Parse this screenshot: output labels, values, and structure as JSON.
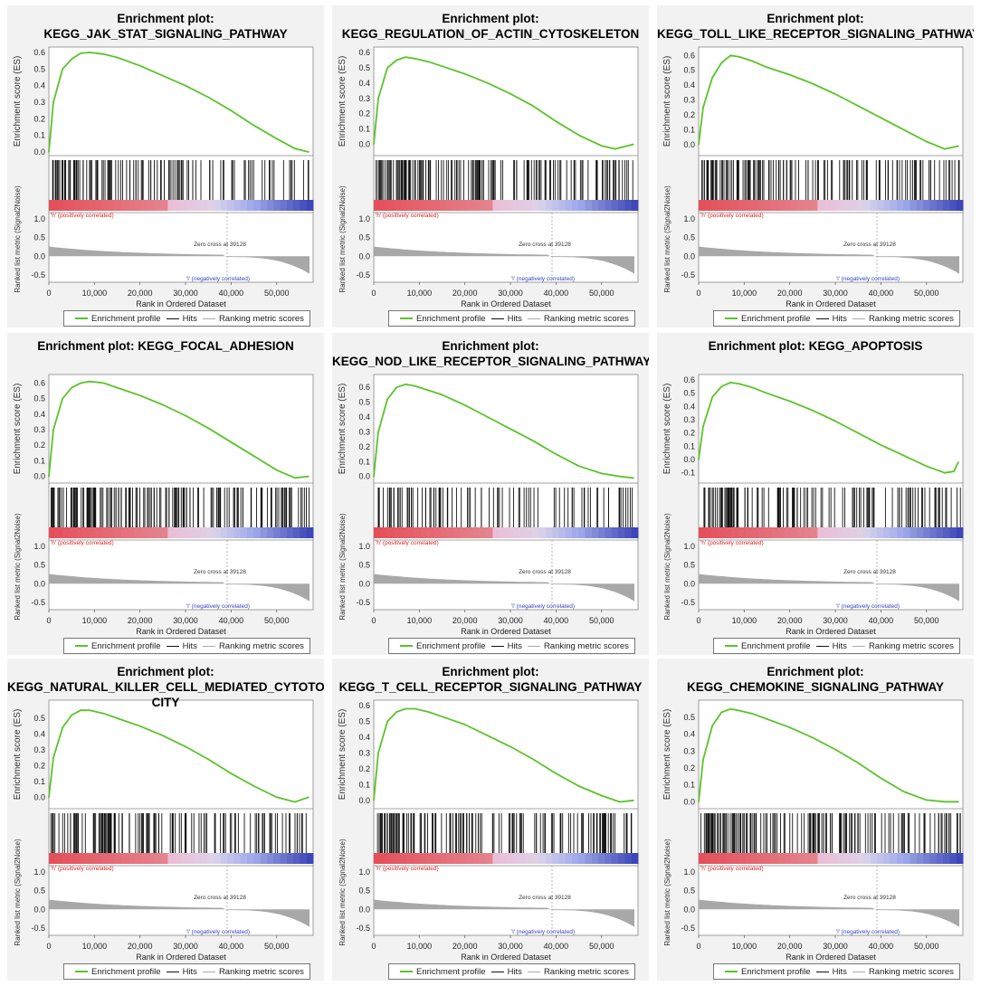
{
  "legend": {
    "profile": "Enrichment profile",
    "hits": "Hits",
    "ranking": "Ranking metric scores"
  },
  "labels": {
    "es_axis": "Enrichment score (ES)",
    "metric_axis": "Ranked list metric (Signal2Noise)",
    "x_axis": "Rank in Ordered Dataset",
    "pos": "'h' (positively correlated)",
    "neg": "'l' (negatively correlated)",
    "zero_cross": "Zero cross at 39128"
  },
  "colors": {
    "curve": "#5cc22c",
    "hit": "#111111",
    "metric": "#a8a8a8"
  },
  "chart_data": [
    {
      "type": "line",
      "title": "Enrichment plot:\nKEGG_JAK_STAT_SIGNALING_PATHWAY",
      "es_ticks": [
        "0.6",
        "0.5",
        "0.4",
        "0.3",
        "0.2",
        "0.1",
        "0.0"
      ],
      "es_ylim": [
        0,
        0.6
      ],
      "es_min": 0,
      "x": [
        0,
        1000,
        3000,
        5000,
        7000,
        9000,
        12000,
        15000,
        20000,
        25000,
        30000,
        35000,
        40000,
        45000,
        50000,
        54000,
        57000
      ],
      "es": [
        0,
        0.3,
        0.5,
        0.56,
        0.595,
        0.6,
        0.59,
        0.57,
        0.52,
        0.46,
        0.4,
        0.33,
        0.25,
        0.16,
        0.08,
        0.02,
        0
      ],
      "xlim": [
        0,
        58000
      ],
      "xticks": [
        "0",
        "10,000",
        "20,000",
        "30,000",
        "40,000",
        "50,000"
      ],
      "metric_ticks": [
        "1.0",
        "0.5",
        "0.0",
        "-0.5"
      ],
      "hit_density": [
        0.9,
        0.5,
        0.35,
        0.3
      ]
    },
    {
      "type": "line",
      "title": "Enrichment plot:\nKEGG_REGULATION_OF_ACTIN_CYTOSKELETON",
      "es_ticks": [
        "0.6",
        "0.5",
        "0.4",
        "0.3",
        "0.2",
        "0.1",
        "0.0"
      ],
      "es_ylim": [
        -0.05,
        0.6
      ],
      "es_min": -0.05,
      "x": [
        0,
        1000,
        3000,
        5000,
        7000,
        9000,
        12000,
        15000,
        20000,
        25000,
        30000,
        35000,
        40000,
        45000,
        50000,
        53000,
        57000
      ],
      "es": [
        0,
        0.3,
        0.5,
        0.55,
        0.57,
        0.56,
        0.54,
        0.51,
        0.46,
        0.4,
        0.33,
        0.25,
        0.15,
        0.06,
        -0.01,
        -0.03,
        0.0
      ],
      "xlim": [
        0,
        58000
      ],
      "xticks": [
        "0",
        "10,000",
        "20,000",
        "30,000",
        "40,000",
        "50,000"
      ],
      "metric_ticks": [
        "1.0",
        "0.5",
        "0.0",
        "-0.5"
      ],
      "hit_density": [
        0.9,
        0.6,
        0.5,
        0.55
      ]
    },
    {
      "type": "line",
      "title": "Enrichment plot:\nKEGG_TOLL_LIKE_RECEPTOR_SIGNALING_PATHWAY",
      "es_ticks": [
        "0.6",
        "0.5",
        "0.4",
        "0.3",
        "0.2",
        "0.1",
        "0.0"
      ],
      "es_ylim": [
        -0.05,
        0.62
      ],
      "es_min": -0.05,
      "x": [
        0,
        1000,
        3000,
        5000,
        7000,
        9000,
        12000,
        15000,
        20000,
        25000,
        30000,
        35000,
        40000,
        45000,
        50000,
        54000,
        57000
      ],
      "es": [
        0,
        0.25,
        0.45,
        0.55,
        0.6,
        0.59,
        0.56,
        0.52,
        0.47,
        0.41,
        0.34,
        0.26,
        0.18,
        0.1,
        0.02,
        -0.03,
        -0.01
      ],
      "xlim": [
        0,
        58000
      ],
      "xticks": [
        "0",
        "10,000",
        "20,000",
        "30,000",
        "40,000",
        "50,000"
      ],
      "metric_ticks": [
        "1.0",
        "0.5",
        "0.0",
        "-0.5"
      ],
      "hit_density": [
        0.85,
        0.5,
        0.45,
        0.45
      ]
    },
    {
      "type": "line",
      "title": "Enrichment plot: KEGG_FOCAL_ADHESION",
      "es_ticks": [
        "0.6",
        "0.5",
        "0.4",
        "0.3",
        "0.2",
        "0.1",
        "0.0"
      ],
      "es_ylim": [
        -0.02,
        0.62
      ],
      "es_min": -0.02,
      "x": [
        0,
        1000,
        3000,
        5000,
        7000,
        9000,
        12000,
        15000,
        20000,
        25000,
        30000,
        35000,
        40000,
        45000,
        50000,
        54000,
        57000
      ],
      "es": [
        0,
        0.3,
        0.5,
        0.57,
        0.6,
        0.61,
        0.6,
        0.57,
        0.52,
        0.46,
        0.39,
        0.31,
        0.22,
        0.13,
        0.04,
        -0.01,
        0.0
      ],
      "xlim": [
        0,
        58000
      ],
      "xticks": [
        "0",
        "10,000",
        "20,000",
        "30,000",
        "40,000",
        "50,000"
      ],
      "metric_ticks": [
        "1.0",
        "0.5",
        "0.0",
        "-0.5"
      ],
      "hit_density": [
        0.95,
        0.7,
        0.55,
        0.5
      ]
    },
    {
      "type": "line",
      "title": "Enrichment plot:\nKEGG_NOD_LIKE_RECEPTOR_SIGNALING_PATHWAY",
      "es_ticks": [
        "0.6",
        "0.5",
        "0.4",
        "0.3",
        "0.2",
        "0.1",
        "0.0"
      ],
      "es_ylim": [
        -0.02,
        0.65
      ],
      "es_min": -0.02,
      "x": [
        0,
        1000,
        3000,
        5000,
        7000,
        9000,
        12000,
        15000,
        20000,
        25000,
        30000,
        35000,
        40000,
        45000,
        50000,
        54000,
        57000
      ],
      "es": [
        0,
        0.3,
        0.52,
        0.6,
        0.62,
        0.61,
        0.58,
        0.55,
        0.48,
        0.4,
        0.32,
        0.24,
        0.15,
        0.07,
        0.02,
        0.0,
        -0.01
      ],
      "xlim": [
        0,
        58000
      ],
      "xticks": [
        "0",
        "10,000",
        "20,000",
        "30,000",
        "40,000",
        "50,000"
      ],
      "metric_ticks": [
        "1.0",
        "0.5",
        "0.0",
        "-0.5"
      ],
      "hit_density": [
        0.6,
        0.3,
        0.25,
        0.35
      ]
    },
    {
      "type": "line",
      "title": "Enrichment plot: KEGG_APOPTOSIS",
      "es_ticks": [
        "0.6",
        "0.5",
        "0.4",
        "0.3",
        "0.2",
        "0.1",
        "0.0",
        "-0.1"
      ],
      "es_ylim": [
        -0.15,
        0.6
      ],
      "es_min": -0.15,
      "x": [
        0,
        1000,
        3000,
        5000,
        7000,
        9000,
        12000,
        15000,
        20000,
        25000,
        30000,
        35000,
        40000,
        45000,
        50000,
        54000,
        56000,
        57000
      ],
      "es": [
        0,
        0.25,
        0.47,
        0.55,
        0.58,
        0.57,
        0.54,
        0.5,
        0.44,
        0.37,
        0.29,
        0.2,
        0.11,
        0.03,
        -0.05,
        -0.1,
        -0.09,
        -0.02
      ],
      "xlim": [
        0,
        58000
      ],
      "xticks": [
        "0",
        "10,000",
        "20,000",
        "30,000",
        "40,000",
        "50,000"
      ],
      "metric_ticks": [
        "1.0",
        "0.5",
        "0.0",
        "-0.5"
      ],
      "hit_density": [
        0.75,
        0.45,
        0.35,
        0.5
      ]
    },
    {
      "type": "line",
      "title": "Enrichment plot:\nKEGG_NATURAL_KILLER_CELL_MEDIATED_CYTOTOXI\nCITY",
      "es_ticks": [
        "0.5",
        "0.4",
        "0.3",
        "0.2",
        "0.1",
        "0.0"
      ],
      "es_ylim": [
        -0.05,
        0.58
      ],
      "es_min": -0.05,
      "x": [
        0,
        1000,
        3000,
        5000,
        7000,
        9000,
        12000,
        15000,
        20000,
        25000,
        30000,
        35000,
        40000,
        45000,
        50000,
        54000,
        57000
      ],
      "es": [
        0,
        0.25,
        0.44,
        0.52,
        0.55,
        0.55,
        0.53,
        0.5,
        0.45,
        0.39,
        0.32,
        0.24,
        0.15,
        0.07,
        0.0,
        -0.03,
        0.0
      ],
      "xlim": [
        0,
        58000
      ],
      "xticks": [
        "0",
        "10,000",
        "20,000",
        "30,000",
        "40,000",
        "50,000"
      ],
      "metric_ticks": [
        "1.0",
        "0.5",
        "0.0",
        "-0.5"
      ],
      "hit_density": [
        0.85,
        0.5,
        0.4,
        0.45
      ]
    },
    {
      "type": "line",
      "title": "Enrichment plot:\nKEGG_T_CELL_RECEPTOR_SIGNALING_PATHWAY",
      "es_ticks": [
        "0.6",
        "0.5",
        "0.4",
        "0.3",
        "0.2",
        "0.1",
        "0.0"
      ],
      "es_ylim": [
        -0.03,
        0.6
      ],
      "es_min": -0.03,
      "x": [
        0,
        1000,
        3000,
        5000,
        7000,
        9000,
        12000,
        15000,
        20000,
        25000,
        30000,
        35000,
        40000,
        45000,
        50000,
        54000,
        57000
      ],
      "es": [
        0,
        0.3,
        0.5,
        0.56,
        0.58,
        0.58,
        0.56,
        0.53,
        0.48,
        0.41,
        0.34,
        0.26,
        0.17,
        0.09,
        0.03,
        -0.01,
        0.0
      ],
      "xlim": [
        0,
        58000
      ],
      "xticks": [
        "0",
        "10,000",
        "20,000",
        "30,000",
        "40,000",
        "50,000"
      ],
      "metric_ticks": [
        "1.0",
        "0.5",
        "0.0",
        "-0.5"
      ],
      "hit_density": [
        0.85,
        0.5,
        0.45,
        0.55
      ]
    },
    {
      "type": "line",
      "title": "Enrichment plot:\nKEGG_CHEMOKINE_SIGNALING_PATHWAY",
      "es_ticks": [
        "0.5",
        "0.4",
        "0.3",
        "0.2",
        "0.1",
        "0.0"
      ],
      "es_ylim": [
        -0.02,
        0.57
      ],
      "es_min": -0.02,
      "x": [
        0,
        1000,
        3000,
        5000,
        7000,
        9000,
        12000,
        15000,
        20000,
        25000,
        30000,
        35000,
        40000,
        45000,
        50000,
        54000,
        57000
      ],
      "es": [
        0,
        0.25,
        0.45,
        0.53,
        0.55,
        0.54,
        0.52,
        0.49,
        0.44,
        0.38,
        0.31,
        0.23,
        0.14,
        0.06,
        0.01,
        0.0,
        0.0
      ],
      "xlim": [
        0,
        58000
      ],
      "xticks": [
        "0",
        "10,000",
        "20,000",
        "30,000",
        "40,000",
        "50,000"
      ],
      "metric_ticks": [
        "1.0",
        "0.5",
        "0.0",
        "-0.5"
      ],
      "hit_density": [
        0.95,
        0.65,
        0.5,
        0.5
      ]
    }
  ]
}
